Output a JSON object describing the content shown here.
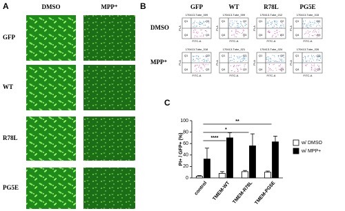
{
  "panel_a": {
    "label": "A",
    "columns": [
      "DMSO",
      "MPP⁺"
    ],
    "rows": [
      "GFP",
      "WT",
      "R78L",
      "PG5E"
    ]
  },
  "panel_b": {
    "label": "B",
    "columns": [
      "GFP",
      "WT",
      "R78L",
      "PG5E"
    ],
    "rows": [
      "DMSO",
      "MPP⁺"
    ],
    "tubes": [
      [
        "170413-Tube_009",
        "170413-Tube_009",
        "170413-Tube_012",
        "170413-Tube_015"
      ],
      [
        "170413-Tube_018",
        "170413-Tube_021",
        "170413-Tube_024",
        "170413-Tube_026"
      ]
    ],
    "quadrants": [
      "Q1",
      "Q2",
      "Q4",
      "Q3"
    ],
    "x_label": "FITC-A",
    "y_label": "PI-A"
  },
  "panel_c": {
    "label": "C"
  },
  "chart_data": {
    "type": "bar",
    "ylabel": "PI+ / GFP+ (%)",
    "categories": [
      "control",
      "TMEM-WT",
      "TMEM-R78L",
      "TMEM-PG5E"
    ],
    "series": [
      {
        "name": "w/ DMSO",
        "color": "#ffffff",
        "values": [
          3,
          8,
          11,
          10
        ],
        "errors": [
          1,
          3,
          2,
          2
        ]
      },
      {
        "name": "w/ MPP+",
        "color": "#000000",
        "values": [
          33,
          70,
          56,
          63
        ],
        "errors": [
          19,
          9,
          21,
          10
        ]
      }
    ],
    "ylim": [
      0,
      100
    ],
    "yticks": [
      0,
      20,
      40,
      60,
      80,
      100
    ],
    "annotations": [
      {
        "label": "**",
        "between": [
          "control",
          "TMEM-PG5E"
        ]
      },
      {
        "label": "*",
        "between": [
          "control",
          "TMEM-R78L"
        ]
      },
      {
        "label": "****",
        "between": [
          "control",
          "TMEM-WT"
        ]
      }
    ]
  }
}
